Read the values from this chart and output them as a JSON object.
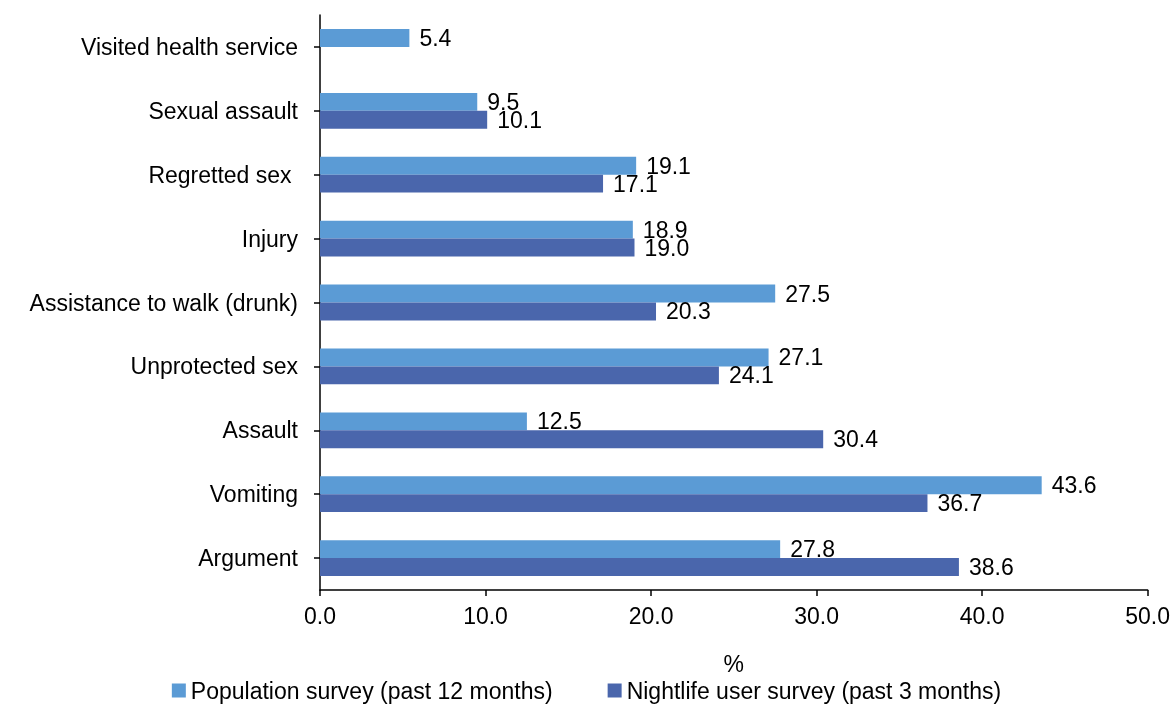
{
  "chart_data": {
    "type": "bar",
    "orientation": "horizontal",
    "categories": [
      "Visited health service",
      "Sexual assault",
      "Regretted sex ",
      "Injury",
      "Assistance to walk (drunk)",
      "Unprotected sex",
      "Assault",
      "Vomiting",
      "Argument"
    ],
    "series": [
      {
        "name": "Population survey (past 12 months)",
        "color": "#5b9bd5",
        "values": [
          5.4,
          9.5,
          19.1,
          18.9,
          27.5,
          27.1,
          12.5,
          43.6,
          27.8
        ],
        "value_labels": [
          "5.4",
          "9.5",
          "19.1",
          "18.9",
          "27.5",
          "27.1",
          "12.5",
          "43.6",
          "27.8"
        ]
      },
      {
        "name": "Nightlife user survey (past 3 months)",
        "color": "#4a66ac",
        "values": [
          null,
          10.1,
          17.1,
          19.0,
          20.3,
          24.1,
          30.4,
          36.7,
          38.6
        ],
        "value_labels": [
          null,
          "10.1",
          "17.1",
          "19.0",
          "20.3",
          "24.1",
          "30.4",
          "36.7",
          "38.6"
        ]
      }
    ],
    "xlabel": "%",
    "xlim": [
      0,
      50
    ],
    "xticks": [
      {
        "value": 0,
        "label": "0.0"
      },
      {
        "value": 10,
        "label": "10.0"
      },
      {
        "value": 20,
        "label": "20.0"
      },
      {
        "value": 30,
        "label": "30.0"
      },
      {
        "value": 40,
        "label": "40.0"
      },
      {
        "value": 50,
        "label": "50.0"
      }
    ],
    "grid": false,
    "legend": "bottom"
  }
}
